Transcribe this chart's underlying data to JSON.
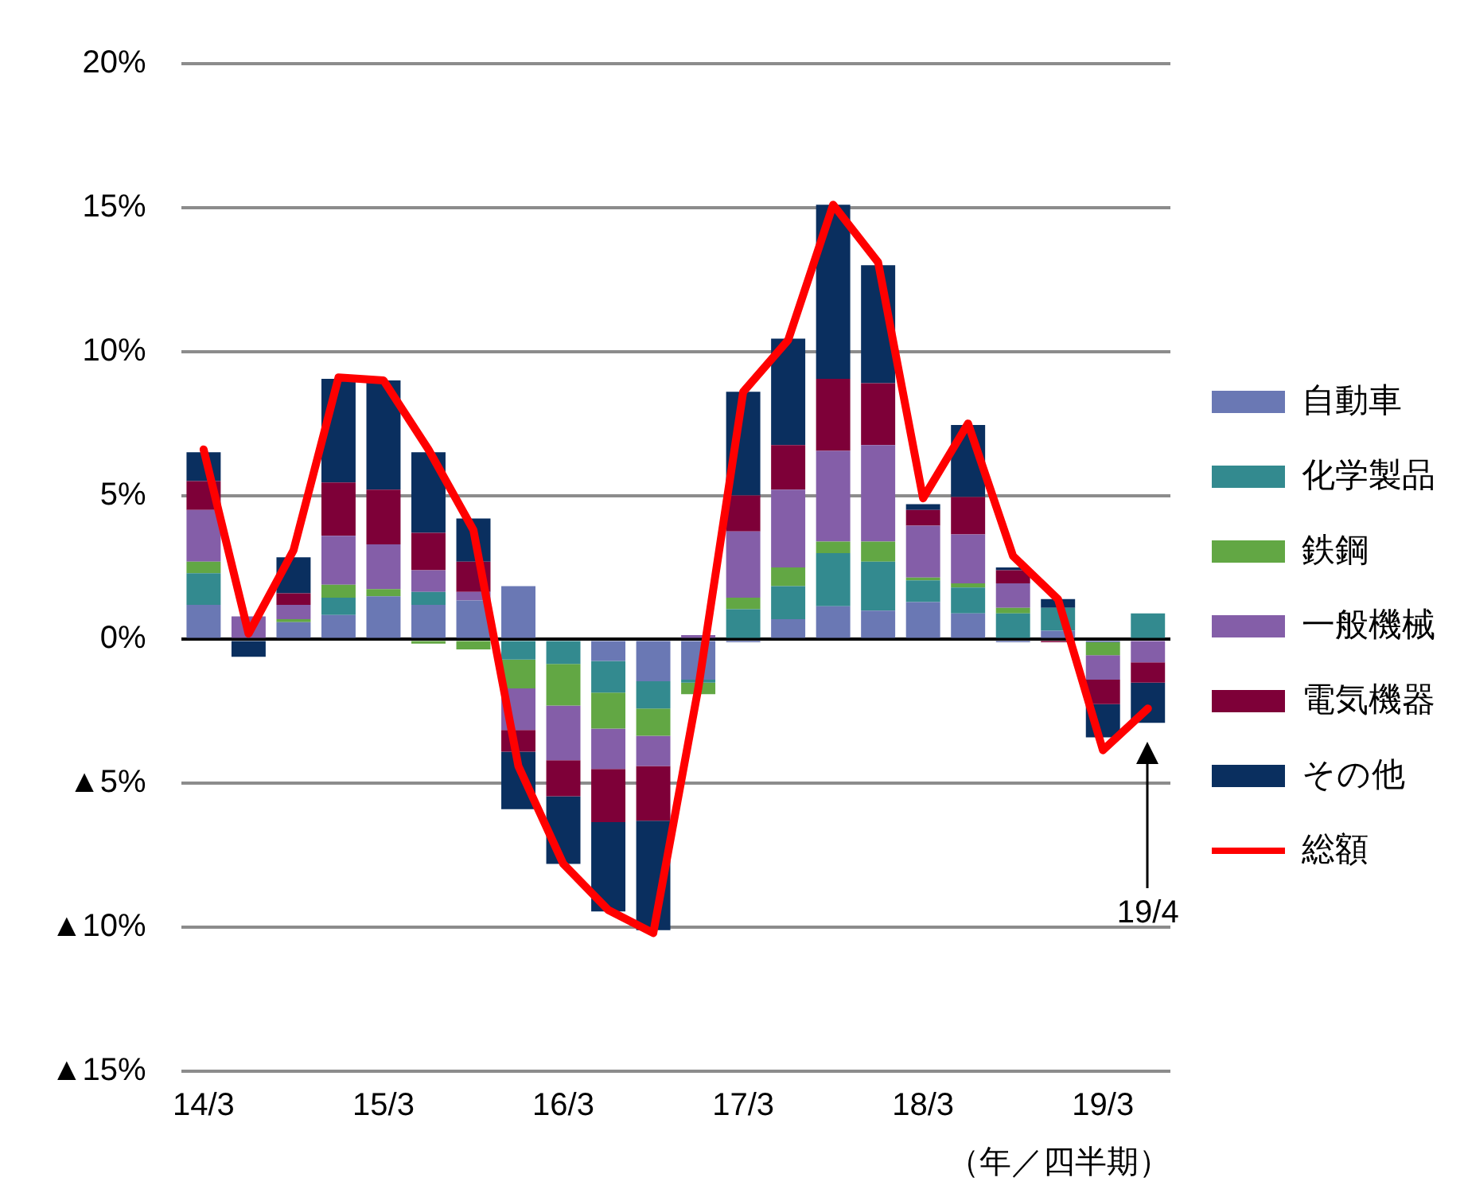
{
  "chart_data": {
    "type": "bar",
    "stacked": true,
    "xlabel": "（年／四半期）",
    "categories": [
      "14/3",
      null,
      null,
      null,
      "15/3",
      null,
      null,
      null,
      "16/3",
      null,
      null,
      null,
      "17/3",
      null,
      null,
      null,
      "18/3",
      null,
      null,
      null,
      "19/3",
      null
    ],
    "series": [
      {
        "name": "自動車",
        "color": "#6a78b4",
        "values": [
          1.2,
          0,
          0.6,
          0.85,
          1.5,
          1.2,
          1.35,
          1.85,
          0,
          -0.75,
          -1.45,
          -1.4,
          -0.1,
          0.7,
          1.15,
          1.0,
          1.3,
          0.9,
          -0.1,
          0.3,
          -0.1,
          0
        ]
      },
      {
        "name": "化学製品",
        "color": "#338a8f",
        "values": [
          1.1,
          0,
          0,
          0.6,
          0,
          0.45,
          0,
          -0.7,
          -0.85,
          -1.1,
          -0.95,
          -0.1,
          1.05,
          1.15,
          1.85,
          1.7,
          0.75,
          0.9,
          0.9,
          0.8,
          0,
          0.9
        ]
      },
      {
        "name": "鉄鋼",
        "color": "#62a744",
        "values": [
          0.4,
          0,
          0.1,
          0.45,
          0.25,
          -0.15,
          -0.35,
          -1.0,
          -1.45,
          -1.25,
          -0.95,
          -0.4,
          0.4,
          0.65,
          0.4,
          0.7,
          0.1,
          0.15,
          0.2,
          0,
          -0.45,
          0
        ]
      },
      {
        "name": "一般機械",
        "color": "#845ea8",
        "values": [
          1.8,
          0.8,
          0.5,
          1.7,
          1.55,
          0.75,
          0.3,
          -1.45,
          -1.9,
          -1.4,
          -1.05,
          0.15,
          2.3,
          2.7,
          3.15,
          3.35,
          1.8,
          1.7,
          0.85,
          0,
          -0.85,
          -0.8
        ]
      },
      {
        "name": "電気機器",
        "color": "#7e0038",
        "values": [
          1.0,
          0,
          0.4,
          1.85,
          1.9,
          1.3,
          1.05,
          -0.75,
          -1.25,
          -1.85,
          -1.9,
          0,
          1.25,
          1.55,
          2.5,
          2.15,
          0.55,
          1.3,
          0.45,
          -0.1,
          -0.85,
          -0.7
        ]
      },
      {
        "name": "その他",
        "color": "#0a2f5f",
        "values": [
          1.0,
          -0.6,
          1.25,
          3.6,
          3.8,
          2.8,
          1.5,
          -2.0,
          -2.35,
          -3.1,
          -3.8,
          0,
          3.6,
          3.7,
          6.05,
          4.1,
          0.2,
          2.5,
          0.1,
          0.3,
          -1.15,
          -1.4
        ]
      },
      {
        "name": "総額",
        "type": "line",
        "color": "#ff0000",
        "values": [
          6.6,
          0.2,
          3.1,
          9.1,
          9.0,
          6.6,
          3.8,
          -4.4,
          -7.8,
          -9.4,
          -10.2,
          -1.7,
          8.6,
          10.4,
          15.1,
          13.1,
          4.9,
          7.5,
          2.9,
          1.4,
          -3.85,
          -2.4
        ]
      }
    ],
    "ylim": [
      -15,
      20
    ],
    "yticks": [
      {
        "value": -15,
        "label": "▲15%"
      },
      {
        "value": -10,
        "label": "▲10%"
      },
      {
        "value": -5,
        "label": "▲5%"
      },
      {
        "value": 0,
        "label": "0%"
      },
      {
        "value": 5,
        "label": "5%"
      },
      {
        "value": 10,
        "label": "10%"
      },
      {
        "value": 15,
        "label": "15%"
      },
      {
        "value": 20,
        "label": "20%"
      }
    ],
    "grid": "y",
    "legend": "right",
    "marker": "none",
    "annotations": [
      "19/4"
    ]
  }
}
